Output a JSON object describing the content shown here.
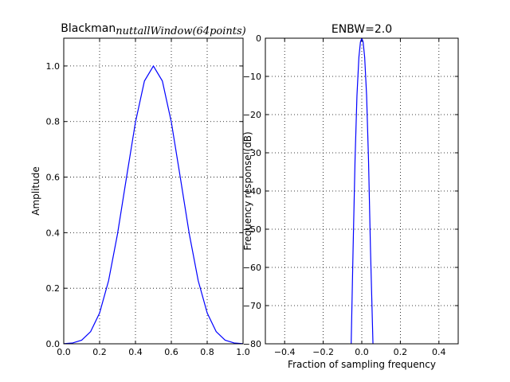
{
  "chart_data": [
    {
      "type": "line",
      "title": "Blackman",
      "title_subscript": "nuttallWindow(64points)",
      "ylabel": "Amplitude",
      "x": [
        0,
        0.05,
        0.1,
        0.15,
        0.2,
        0.25,
        0.3,
        0.35,
        0.4,
        0.45,
        0.5,
        0.55,
        0.6,
        0.65,
        0.7,
        0.75,
        0.8,
        0.85,
        0.9,
        0.95,
        1
      ],
      "values": [
        0.0004,
        0.003,
        0.013,
        0.044,
        0.111,
        0.227,
        0.396,
        0.599,
        0.798,
        0.946,
        1.0,
        0.946,
        0.798,
        0.599,
        0.396,
        0.227,
        0.111,
        0.044,
        0.013,
        0.003,
        0.0004
      ],
      "color": "#0000ff",
      "xlim": [
        0,
        1
      ],
      "ylim": [
        0,
        1.1
      ],
      "xticks": [
        {
          "value": 0,
          "label": "0.0"
        },
        0.2,
        0.4,
        0.6,
        0.8,
        {
          "value": 1,
          "label": "1.0"
        }
      ],
      "yticks": [
        {
          "value": 0,
          "label": "0.0"
        },
        0.2,
        0.4,
        0.6,
        0.8,
        {
          "value": 1,
          "label": "1.0"
        }
      ],
      "grid": true
    },
    {
      "type": "line",
      "title": "ENBW=2.0",
      "xlabel": "Fraction of sampling frequency",
      "ylabel": "Frequency response (dB)",
      "x": [
        -0.055,
        -0.045,
        -0.035,
        -0.025,
        -0.015,
        -0.007,
        0,
        0.007,
        0.015,
        0.025,
        0.035,
        0.045,
        0.058
      ],
      "values": [
        -80,
        -55,
        -32,
        -15,
        -5,
        -1,
        0,
        -1,
        -5,
        -15,
        -32,
        -55,
        -80
      ],
      "color": "#0000ff",
      "xlim": [
        -0.5,
        0.5
      ],
      "ylim": [
        -80,
        0
      ],
      "xticks": [
        {
          "value": -0.4,
          "label": "−0.4"
        },
        {
          "value": -0.2,
          "label": "−0.2"
        },
        {
          "value": 0,
          "label": "0.0"
        },
        0.2,
        0.4
      ],
      "yticks": [
        {
          "value": -80,
          "label": "−80"
        },
        {
          "value": -70,
          "label": "−70"
        },
        {
          "value": -60,
          "label": "−60"
        },
        {
          "value": -50,
          "label": "−50"
        },
        {
          "value": -40,
          "label": "−40"
        },
        {
          "value": -30,
          "label": "−30"
        },
        {
          "value": -20,
          "label": "−20"
        },
        {
          "value": -10,
          "label": "−10"
        },
        0
      ],
      "grid": true
    }
  ]
}
